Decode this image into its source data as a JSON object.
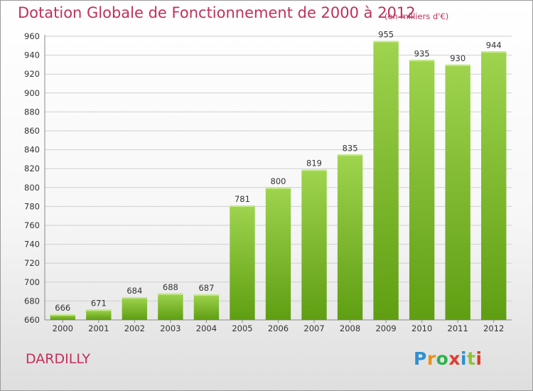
{
  "title": "Dotation Globale de Fonctionnement de 2000 à 2012",
  "unit_label": "(en milliers d'€)",
  "place_name": "DARDILLY",
  "logo": {
    "letters": [
      "P",
      "r",
      "o",
      "x",
      "i",
      "t",
      "i"
    ],
    "colors": [
      "#2f8fd1",
      "#e8901c",
      "#2fb24c",
      "#e03b2f",
      "#2f8fd1",
      "#8fc33a",
      "#e03b2f"
    ]
  },
  "colors": {
    "title": "#c0305a",
    "bar_light": "#9fd44e",
    "bar_dark": "#5f9e12",
    "grid": "#cfcfcf",
    "axis_text": "#333333"
  },
  "chart_data": {
    "type": "bar",
    "title": "Dotation Globale de Fonctionnement de 2000 à 2012",
    "subtitle": "(en milliers d'€)",
    "xlabel": "",
    "ylabel": "",
    "categories": [
      "2000",
      "2001",
      "2002",
      "2003",
      "2004",
      "2005",
      "2006",
      "2007",
      "2008",
      "2009",
      "2010",
      "2011",
      "2012"
    ],
    "values": [
      666,
      671,
      684,
      688,
      687,
      781,
      800,
      819,
      835,
      955,
      935,
      930,
      944
    ],
    "ylim": [
      660,
      960
    ],
    "yticks": [
      660,
      680,
      700,
      720,
      740,
      760,
      780,
      800,
      820,
      840,
      860,
      880,
      900,
      920,
      940,
      960
    ],
    "grid": true,
    "data_labels": true
  }
}
